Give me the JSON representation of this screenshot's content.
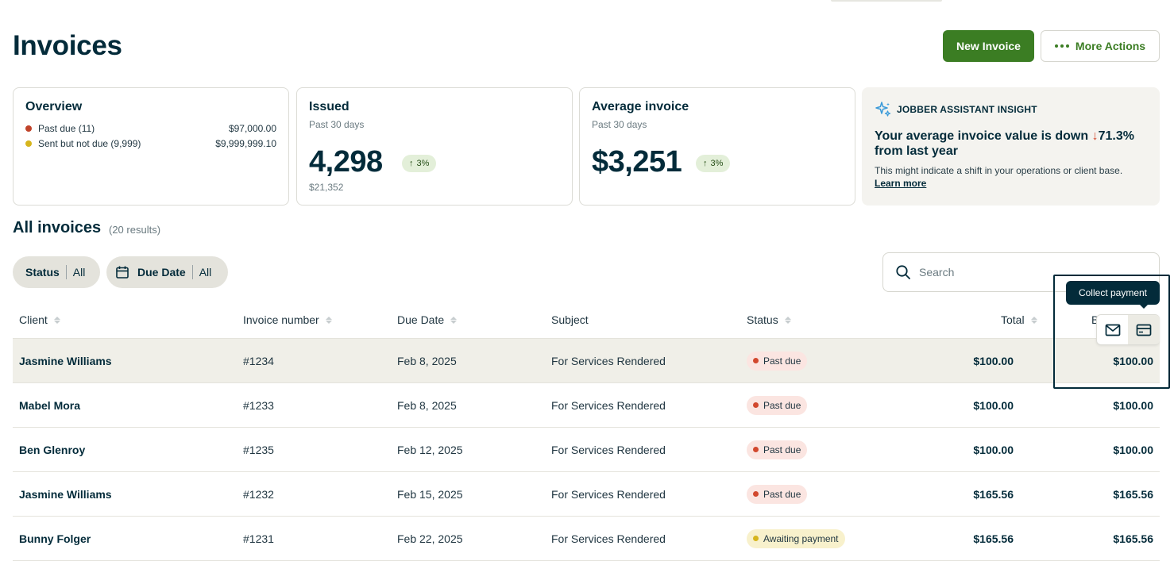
{
  "page": {
    "title": "Invoices"
  },
  "header_actions": {
    "new_invoice": "New Invoice",
    "more_actions": "More Actions"
  },
  "overview": {
    "title": "Overview",
    "items": [
      {
        "label": "Past due (11)",
        "amount": "$97,000.00",
        "color": "#c0432a"
      },
      {
        "label": "Sent but not due (9,999)",
        "amount": "$9,999,999.10",
        "color": "#d6b51d"
      }
    ]
  },
  "issued": {
    "title": "Issued",
    "period": "Past 30 days",
    "value": "4,298",
    "trend": "3%",
    "subvalue": "$21,352"
  },
  "average": {
    "title": "Average invoice",
    "period": "Past 30 days",
    "value": "$3,251",
    "trend": "3%"
  },
  "insight": {
    "label": "JOBBER ASSISTANT INSIGHT",
    "headline_start": "Your average invoice value is down",
    "headline_value": "71.3%",
    "headline_end": "from last year",
    "body": "This might indicate a shift in your operations or client base.",
    "link": "Learn more"
  },
  "list": {
    "title": "All invoices",
    "count": "(20 results)"
  },
  "filters": {
    "status": {
      "label": "Status",
      "value": "All"
    },
    "due_date": {
      "label": "Due Date",
      "value": "All"
    }
  },
  "search": {
    "placeholder": "Search"
  },
  "columns": {
    "client": "Client",
    "invoice_number": "Invoice number",
    "due_date": "Due Date",
    "subject": "Subject",
    "status": "Status",
    "total": "Total",
    "balance_peek": "B"
  },
  "rows": [
    {
      "client": "Jasmine Williams",
      "number": "#1234",
      "due": "Feb 8, 2025",
      "subject": "For Services Rendered",
      "status": "Past due",
      "total": "$100.00",
      "balance": "$100.00"
    },
    {
      "client": "Mabel Mora",
      "number": "#1233",
      "due": "Feb 8, 2025",
      "subject": "For Services Rendered",
      "status": "Past due",
      "total": "$100.00",
      "balance": "$100.00"
    },
    {
      "client": "Ben Glenroy",
      "number": "#1235",
      "due": "Feb 12, 2025",
      "subject": "For Services Rendered",
      "status": "Past due",
      "total": "$100.00",
      "balance": "$100.00"
    },
    {
      "client": "Jasmine Williams",
      "number": "#1232",
      "due": "Feb 15, 2025",
      "subject": "For Services Rendered",
      "status": "Past due",
      "total": "$165.56",
      "balance": "$165.56"
    },
    {
      "client": "Bunny Folger",
      "number": "#1231",
      "due": "Feb 22, 2025",
      "subject": "For Services Rendered",
      "status": "Awaiting payment",
      "total": "$165.56",
      "balance": "$165.56"
    }
  ],
  "row_actions": {
    "tooltip": "Collect payment",
    "email_icon": "envelope-icon",
    "pay_icon": "credit-card-icon"
  },
  "colors": {
    "brand_green": "#3b7d23",
    "ink": "#032b3a",
    "past_due": "#d2482e",
    "awaiting": "#d6b51d"
  }
}
